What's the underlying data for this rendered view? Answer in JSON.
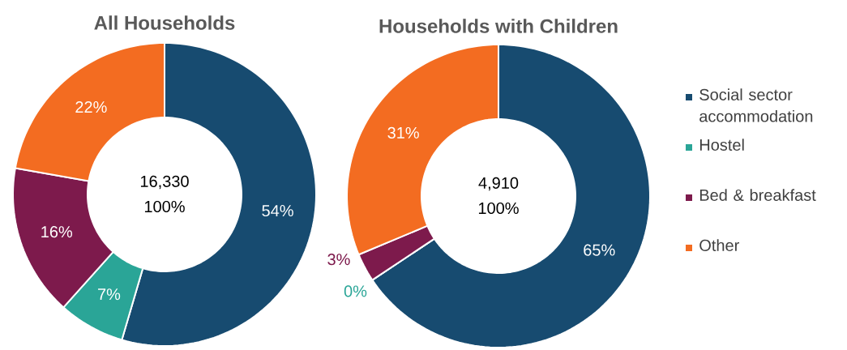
{
  "chart_data": [
    {
      "type": "donut",
      "title": "All Households",
      "values": [
        54,
        7,
        16,
        22
      ],
      "value_labels": [
        "54%",
        "7%",
        "16%",
        "22%"
      ],
      "colors": [
        "#174b70",
        "#2aa597",
        "#7d1a4c",
        "#f36c21"
      ],
      "annotations": [
        "16,330",
        "100%"
      ]
    },
    {
      "type": "donut",
      "title": "Households with Children",
      "categories": [
        "Social sector accommodation",
        "Hostel",
        "Bed & breakfast",
        "Other"
      ],
      "values": [
        65,
        0,
        3,
        31
      ],
      "value_labels": [
        "65%",
        "0%",
        "3%",
        "31%"
      ],
      "colors": [
        "#174b70",
        "#2aa597",
        "#7d1a4c",
        "#f36c21"
      ],
      "annotations": [
        "4,910",
        "100%"
      ],
      "legend": "right"
    }
  ]
}
